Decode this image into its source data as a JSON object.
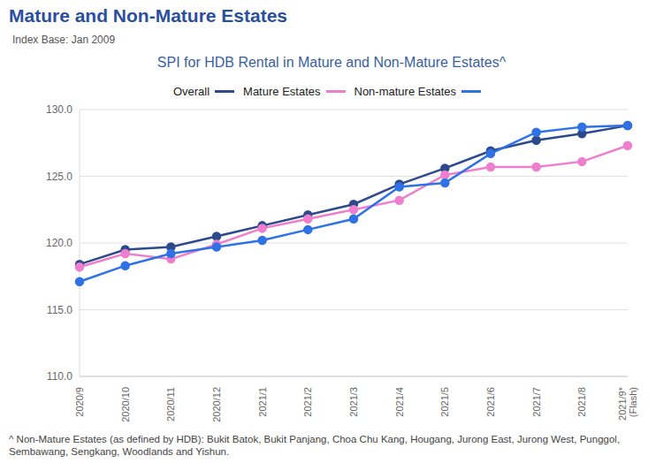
{
  "chart_data": {
    "type": "line",
    "heading": "Mature and Non-Mature Estates",
    "subtitle": "Index Base: Jan 2009",
    "title": "SPI for HDB Rental in Mature and Non-Mature Estates^",
    "footnote": "^ Non-Mature Estates (as defined by HDB): Bukit Batok, Bukit Panjang, Choa Chu Kang, Hougang, Jurong East, Jurong West, Punggol, Sembawang, Sengkang, Woodlands and Yishun.",
    "categories": [
      "2020/9",
      "2020/10",
      "2020/11",
      "2020/12",
      "2021/1",
      "2021/2",
      "2021/3",
      "2021/4",
      "2021/5",
      "2021/6",
      "2021/7",
      "2021/8",
      "2021/9* (Flash)"
    ],
    "series": [
      {
        "name": "Overall",
        "color": "#2c4a8c",
        "values": [
          118.4,
          119.5,
          119.7,
          120.5,
          121.3,
          122.1,
          122.9,
          124.4,
          125.6,
          126.9,
          127.7,
          128.2,
          128.8
        ]
      },
      {
        "name": "Mature Estates",
        "color": "#ee7fcf",
        "values": [
          118.2,
          119.2,
          118.8,
          119.9,
          121.1,
          121.8,
          122.5,
          123.2,
          125.1,
          125.7,
          125.7,
          126.1,
          127.3
        ]
      },
      {
        "name": "Non-mature Estates",
        "color": "#2f72e6",
        "values": [
          117.1,
          118.3,
          119.2,
          119.7,
          120.2,
          121.0,
          121.8,
          124.2,
          124.5,
          126.7,
          128.3,
          128.7,
          128.8
        ]
      }
    ],
    "ylim": [
      110,
      130
    ],
    "yticks": [
      {
        "value": 110,
        "label": "110.0"
      },
      {
        "value": 115,
        "label": "115.0"
      },
      {
        "value": 120,
        "label": "120.0"
      },
      {
        "value": 125,
        "label": "125.0"
      },
      {
        "value": 130,
        "label": "130.0"
      }
    ],
    "grid": true,
    "legend": "top",
    "marker": "circle"
  }
}
